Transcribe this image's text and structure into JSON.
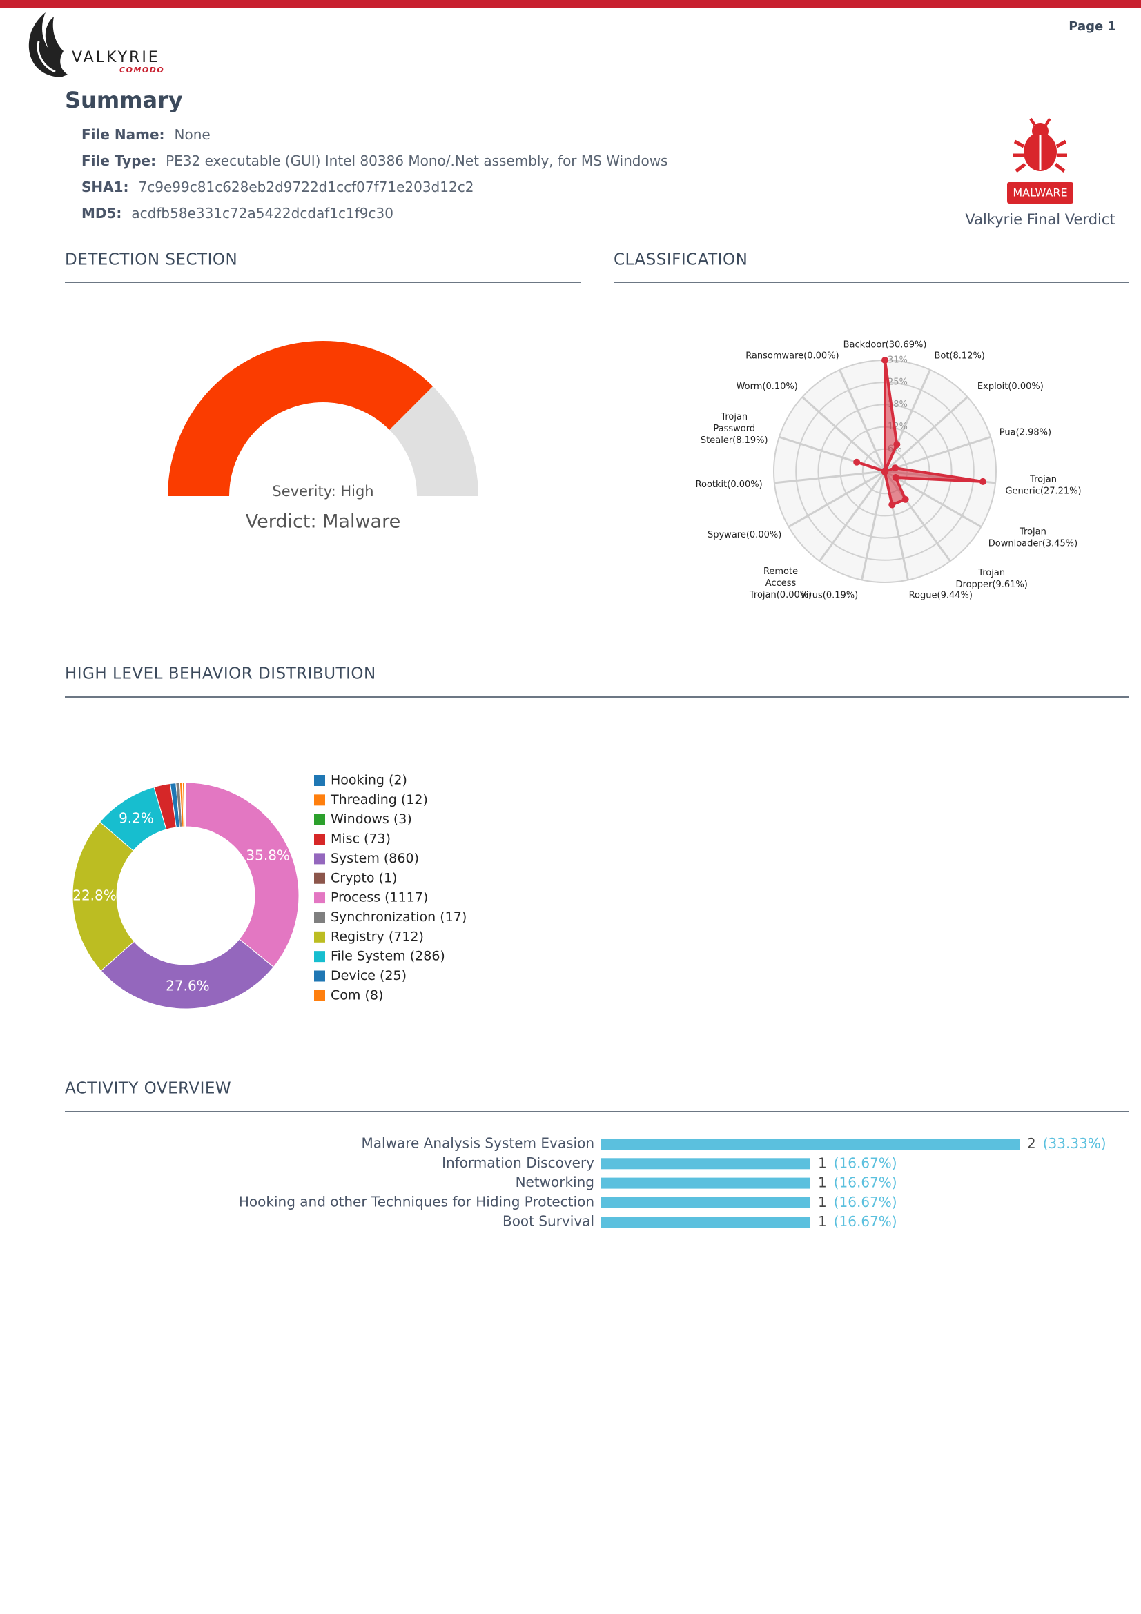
{
  "page_label": "Page 1",
  "logo": {
    "name": "VALKYRIE",
    "brand": "COMODO"
  },
  "summary": {
    "title": "Summary",
    "fields": [
      {
        "label": "File Name:",
        "value": "None"
      },
      {
        "label": "File Type:",
        "value": "PE32 executable (GUI) Intel 80386 Mono/.Net assembly, for MS Windows"
      },
      {
        "label": "SHA1:",
        "value": "7c9e99c81c628eb2d9722d1ccf07f71e203d12c2"
      },
      {
        "label": "MD5:",
        "value": "acdfb58e331c72a5422dcdaf1c1f9c30"
      }
    ],
    "verdict": {
      "badge": "MALWARE",
      "caption": "Valkyrie Final Verdict"
    }
  },
  "sections": [
    "DETECTION SECTION",
    "CLASSIFICATION",
    "HIGH LEVEL BEHAVIOR DISTRIBUTION",
    "ACTIVITY OVERVIEW"
  ],
  "chart_data": [
    {
      "type": "gauge",
      "value": 75,
      "range": [
        0,
        100
      ],
      "color": "#fa3c00",
      "track_color": "#e0e0e0",
      "annotations": [
        "Severity: High",
        "Verdict: Malware"
      ]
    },
    {
      "type": "radar",
      "categories": [
        "Backdoor(30.69%)",
        "Bot(8.12%)",
        "Exploit(0.00%)",
        "Pua(2.98%)",
        "Trojan Generic(27.21%)",
        "Trojan Downloader(3.45%)",
        "Trojan Dropper(9.61%)",
        "Rogue(9.44%)",
        "Virus(0.19%)",
        "Remote Access Trojan(0.00%)",
        "Spyware(0.00%)",
        "Rootkit(0.00%)",
        "Trojan Password Stealer(8.19%)",
        "Worm(0.10%)",
        "Ransomware(0.00%)"
      ],
      "values": [
        30.69,
        8.12,
        0.0,
        2.98,
        27.21,
        3.45,
        9.61,
        9.44,
        0.19,
        0.0,
        0.0,
        0.0,
        8.19,
        0.1,
        0.0
      ],
      "rlim": [
        0,
        30.69
      ],
      "rticks": [
        {
          "value": 6.14,
          "label": "6%"
        },
        {
          "value": 12.28,
          "label": "12%"
        },
        {
          "value": 18.41,
          "label": "18%"
        },
        {
          "value": 24.55,
          "label": "25%"
        },
        {
          "value": 30.69,
          "label": "31%"
        }
      ],
      "color": "#d62d3e"
    },
    {
      "type": "donut",
      "categories": [
        "Hooking (2)",
        "Threading (12)",
        "Windows (3)",
        "Misc (73)",
        "System (860)",
        "Crypto (1)",
        "Process (1117)",
        "Synchronization (17)",
        "Registry (712)",
        "File System (286)",
        "Device (25)",
        "Com (8)"
      ],
      "values": [
        2,
        12,
        3,
        73,
        860,
        1,
        1117,
        17,
        712,
        286,
        25,
        8
      ],
      "value_labels": [
        null,
        null,
        null,
        null,
        "27.6%",
        null,
        "35.8%",
        null,
        "22.8%",
        "9.2%",
        null,
        null
      ],
      "colors": [
        "#1f77b4",
        "#ff7f0e",
        "#2ca02c",
        "#d62728",
        "#9467bd",
        "#8c564b",
        "#e377c2",
        "#7f7f7f",
        "#bcbd22",
        "#17becf",
        "#1f77b4",
        "#ff7f0e"
      ]
    },
    {
      "type": "hbar",
      "categories": [
        "Malware Analysis System Evasion",
        "Information Discovery",
        "Networking",
        "Hooking and other Techniques for Hiding Protection",
        "Boot Survival"
      ],
      "values": [
        2,
        1,
        1,
        1,
        1
      ],
      "share_labels": [
        "(33.33%)",
        "(16.67%)",
        "(16.67%)",
        "(16.67%)",
        "(16.67%)"
      ],
      "xlim": [
        0,
        2
      ],
      "color": "#5bc0de"
    }
  ]
}
